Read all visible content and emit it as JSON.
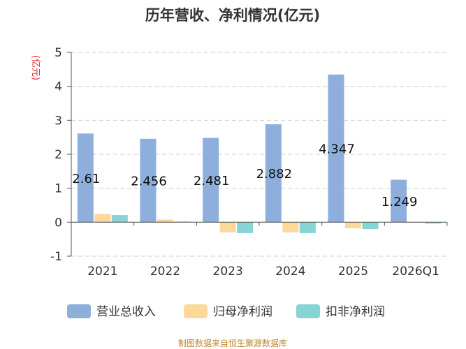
{
  "chart_data": {
    "type": "bar",
    "title": "历年营收、净利情况(亿元)",
    "ylabel": "(亿元)",
    "ylim": [
      -1,
      5
    ],
    "yticks": [
      "-1",
      "0",
      "1",
      "2",
      "3",
      "4",
      "5"
    ],
    "categories": [
      "2021",
      "2022",
      "2023",
      "2024",
      "2025",
      "2026Q1"
    ],
    "series": [
      {
        "name": "营业总收入",
        "color": "#8eaedc",
        "values": [
          2.61,
          2.456,
          2.481,
          2.882,
          4.347,
          1.249
        ]
      },
      {
        "name": "归母净利润",
        "color": "#fcd89a",
        "values": [
          0.24,
          0.08,
          -0.3,
          -0.3,
          -0.18,
          -0.02
        ]
      },
      {
        "name": "扣非净利润",
        "color": "#86d4d4",
        "values": [
          0.21,
          0.02,
          -0.32,
          -0.32,
          -0.2,
          -0.04
        ]
      }
    ],
    "data_labels": [
      "2.61",
      "2.456",
      "2.481",
      "2.882",
      "4.347",
      "1.249"
    ],
    "grid": true,
    "legend_position": "bottom"
  },
  "source": "制图数据来自恒生聚源数据库"
}
